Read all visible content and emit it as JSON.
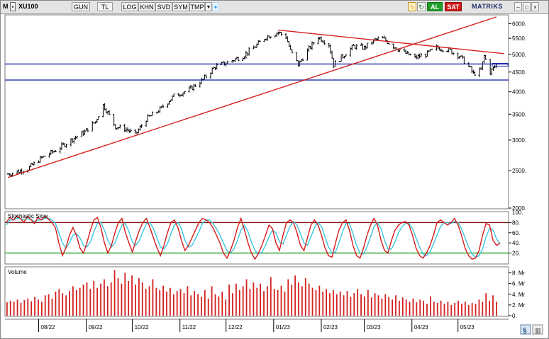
{
  "toolbar": {
    "m_label": "M",
    "symbol": "XU100",
    "period": "GUN",
    "currency": "TL",
    "buttons": [
      "LOG",
      "KHN",
      "SVD",
      "SYM",
      "TMP"
    ],
    "buy_label": "AL",
    "sell_label": "SAT",
    "brand": "MATRIKS"
  },
  "colors": {
    "price": "#000000",
    "trendline": "#d42020",
    "support": "#1c2ba8",
    "stoch_k": "#d41a1a",
    "stoch_d": "#39c6dd",
    "stoch_upper": "#8b1a1a",
    "stoch_lower": "#1a9e1a",
    "volume": "#d42020"
  },
  "chart_data": [
    {
      "type": "candlestick",
      "panel": "price",
      "title": "",
      "yscale": "log",
      "ylim": [
        2000,
        6300
      ],
      "yticks": [
        2000,
        2500,
        3000,
        3500,
        4000,
        4500,
        5000,
        5500,
        6000
      ],
      "x_labels": [
        "08/22",
        "09/22",
        "10/22",
        "11/22",
        "12/22",
        "01/23",
        "02/23",
        "03/23",
        "04/23",
        "05/23"
      ],
      "series_close_anchors": [
        [
          "2022-07-12",
          2450
        ],
        [
          "2022-07-25",
          2530
        ],
        [
          "2022-08-03",
          2700
        ],
        [
          "2022-08-12",
          2820
        ],
        [
          "2022-08-22",
          3000
        ],
        [
          "2022-08-31",
          3150
        ],
        [
          "2022-09-07",
          3350
        ],
        [
          "2022-09-12",
          3700
        ],
        [
          "2022-09-20",
          3250
        ],
        [
          "2022-09-27",
          3200
        ],
        [
          "2022-10-03",
          3100
        ],
        [
          "2022-10-10",
          3400
        ],
        [
          "2022-10-19",
          3600
        ],
        [
          "2022-10-28",
          3900
        ],
        [
          "2022-11-07",
          4050
        ],
        [
          "2022-11-16",
          4300
        ],
        [
          "2022-11-24",
          4650
        ],
        [
          "2022-12-01",
          4750
        ],
        [
          "2022-12-12",
          4950
        ],
        [
          "2022-12-19",
          5200
        ],
        [
          "2022-12-27",
          5550
        ],
        [
          "2023-01-04",
          5700
        ],
        [
          "2023-01-09",
          5550
        ],
        [
          "2023-01-12",
          5100
        ],
        [
          "2023-01-17",
          4700
        ],
        [
          "2023-01-23",
          5100
        ],
        [
          "2023-01-30",
          5550
        ],
        [
          "2023-02-06",
          5300
        ],
        [
          "2023-02-09",
          4700
        ],
        [
          "2023-02-15",
          4950
        ],
        [
          "2023-02-22",
          5250
        ],
        [
          "2023-03-01",
          5200
        ],
        [
          "2023-03-08",
          5450
        ],
        [
          "2023-03-13",
          5500
        ],
        [
          "2023-03-20",
          5250
        ],
        [
          "2023-03-27",
          5050
        ],
        [
          "2023-04-03",
          4900
        ],
        [
          "2023-04-10",
          5000
        ],
        [
          "2023-04-17",
          5200
        ],
        [
          "2023-04-24",
          5150
        ],
        [
          "2023-05-02",
          4950
        ],
        [
          "2023-05-08",
          4650
        ],
        [
          "2023-05-11",
          4450
        ],
        [
          "2023-05-16",
          4550
        ],
        [
          "2023-05-18",
          4950
        ],
        [
          "2023-05-22",
          4500
        ],
        [
          "2023-05-26",
          4700
        ]
      ],
      "trendlines": [
        {
          "kind": "rising",
          "from": [
            "2022-07-12",
            2400
          ],
          "to": [
            "2023-05-26",
            6250
          ]
        },
        {
          "kind": "falling",
          "from": [
            "2023-01-04",
            5780
          ],
          "to": [
            "2023-05-31",
            5020
          ]
        }
      ],
      "horizontal_lines": [
        4720,
        4290
      ],
      "price_marker": 4700
    },
    {
      "type": "line",
      "panel": "stochastic",
      "title": "Stochastic Slow",
      "ylim": [
        0,
        100
      ],
      "yticks": [
        20,
        40,
        60,
        80
      ],
      "top_tick_label": "100.",
      "levels": [
        80,
        20
      ],
      "series": [
        {
          "name": "%K",
          "values": [
            80,
            90,
            85,
            93,
            88,
            80,
            92,
            86,
            78,
            90,
            85,
            92,
            87,
            80,
            70,
            40,
            15,
            30,
            55,
            70,
            55,
            30,
            20,
            40,
            65,
            85,
            90,
            70,
            40,
            20,
            35,
            60,
            80,
            88,
            60,
            40,
            22,
            45,
            65,
            80,
            88,
            70,
            50,
            30,
            15,
            35,
            60,
            80,
            85,
            70,
            45,
            25,
            35,
            50,
            65,
            80,
            88,
            85,
            80,
            70,
            55,
            40,
            20,
            10,
            25,
            45,
            70,
            88,
            65,
            40,
            20,
            8,
            20,
            35,
            55,
            75,
            68,
            40,
            25,
            55,
            80,
            85,
            80,
            60,
            35,
            25,
            50,
            75,
            85,
            75,
            55,
            30,
            15,
            12,
            40,
            65,
            80,
            85,
            65,
            35,
            15,
            10,
            30,
            55,
            75,
            88,
            75,
            45,
            25,
            20,
            45,
            65,
            75,
            80,
            82,
            75,
            55,
            30,
            15,
            10,
            20,
            35,
            55,
            80,
            85,
            80,
            75,
            80,
            88,
            75,
            55,
            30,
            15,
            8,
            10,
            25,
            55,
            78,
            75,
            45,
            35,
            40
          ]
        },
        {
          "name": "%D",
          "values": [
            75,
            85,
            85,
            88,
            88,
            85,
            87,
            86,
            82,
            85,
            85,
            88,
            88,
            85,
            78,
            60,
            40,
            30,
            40,
            55,
            58,
            50,
            35,
            32,
            42,
            62,
            78,
            80,
            65,
            45,
            32,
            40,
            58,
            75,
            78,
            62,
            42,
            35,
            45,
            62,
            78,
            80,
            68,
            50,
            32,
            28,
            38,
            58,
            75,
            80,
            68,
            45,
            32,
            35,
            48,
            62,
            78,
            85,
            85,
            78,
            68,
            55,
            40,
            25,
            20,
            28,
            45,
            65,
            75,
            62,
            42,
            25,
            18,
            22,
            35,
            52,
            65,
            60,
            42,
            38,
            55,
            72,
            82,
            75,
            58,
            40,
            35,
            52,
            70,
            80,
            72,
            52,
            32,
            20,
            22,
            40,
            62,
            78,
            78,
            58,
            35,
            20,
            18,
            32,
            52,
            72,
            80,
            68,
            45,
            28,
            28,
            42,
            60,
            72,
            78,
            78,
            68,
            50,
            32,
            18,
            15,
            22,
            38,
            55,
            72,
            80,
            80,
            78,
            82,
            80,
            68,
            50,
            32,
            18,
            12,
            15,
            28,
            52,
            68,
            65,
            48,
            38
          ]
        }
      ]
    },
    {
      "type": "bar",
      "panel": "volume",
      "title": "Volume",
      "ylim": [
        0,
        9
      ],
      "yticks": [
        0,
        2,
        4,
        6,
        8
      ],
      "ytick_labels": [
        "0.",
        "2. Mr",
        "4. Mr",
        "6. Mr",
        "8. Mr"
      ],
      "values": [
        2.5,
        2.8,
        2.6,
        3.0,
        2.4,
        2.9,
        3.2,
        2.7,
        3.5,
        3.0,
        2.6,
        3.8,
        4.0,
        3.2,
        4.5,
        5.0,
        4.2,
        3.8,
        4.6,
        5.5,
        4.8,
        5.2,
        5.8,
        6.2,
        5.0,
        6.5,
        5.2,
        6.0,
        6.8,
        5.5,
        6.2,
        8.5,
        7.0,
        6.0,
        8.0,
        6.5,
        7.5,
        5.8,
        7.0,
        6.2,
        5.0,
        5.5,
        6.8,
        5.2,
        4.8,
        5.6,
        4.5,
        5.2,
        4.0,
        4.6,
        5.0,
        4.2,
        5.5,
        3.8,
        4.6,
        4.0,
        3.5,
        4.8,
        3.2,
        5.5,
        4.0,
        3.6,
        4.5,
        3.0,
        5.8,
        4.2,
        6.0,
        4.8,
        5.5,
        6.8,
        5.0,
        6.2,
        5.2,
        6.0,
        4.6,
        5.5,
        7.2,
        5.0,
        4.8,
        5.6,
        4.5,
        6.8,
        5.8,
        7.5,
        6.2,
        5.5,
        7.0,
        6.0,
        5.2,
        4.8,
        5.6,
        4.5,
        5.0,
        4.2,
        4.8,
        4.0,
        4.5,
        3.8,
        4.6,
        3.5,
        4.2,
        5.0,
        4.0,
        3.6,
        4.8,
        3.4,
        4.2,
        3.8,
        3.2,
        4.0,
        3.5,
        3.0,
        3.8,
        2.8,
        3.4,
        3.0,
        2.6,
        3.2,
        2.5,
        3.0,
        2.8,
        2.2,
        3.6,
        2.6,
        2.4,
        2.8,
        2.2,
        2.6,
        2.0,
        2.4,
        2.8,
        2.2,
        2.6,
        2.0,
        2.4,
        2.2,
        3.0,
        2.6,
        4.2,
        2.8,
        3.8,
        2.6
      ]
    }
  ]
}
